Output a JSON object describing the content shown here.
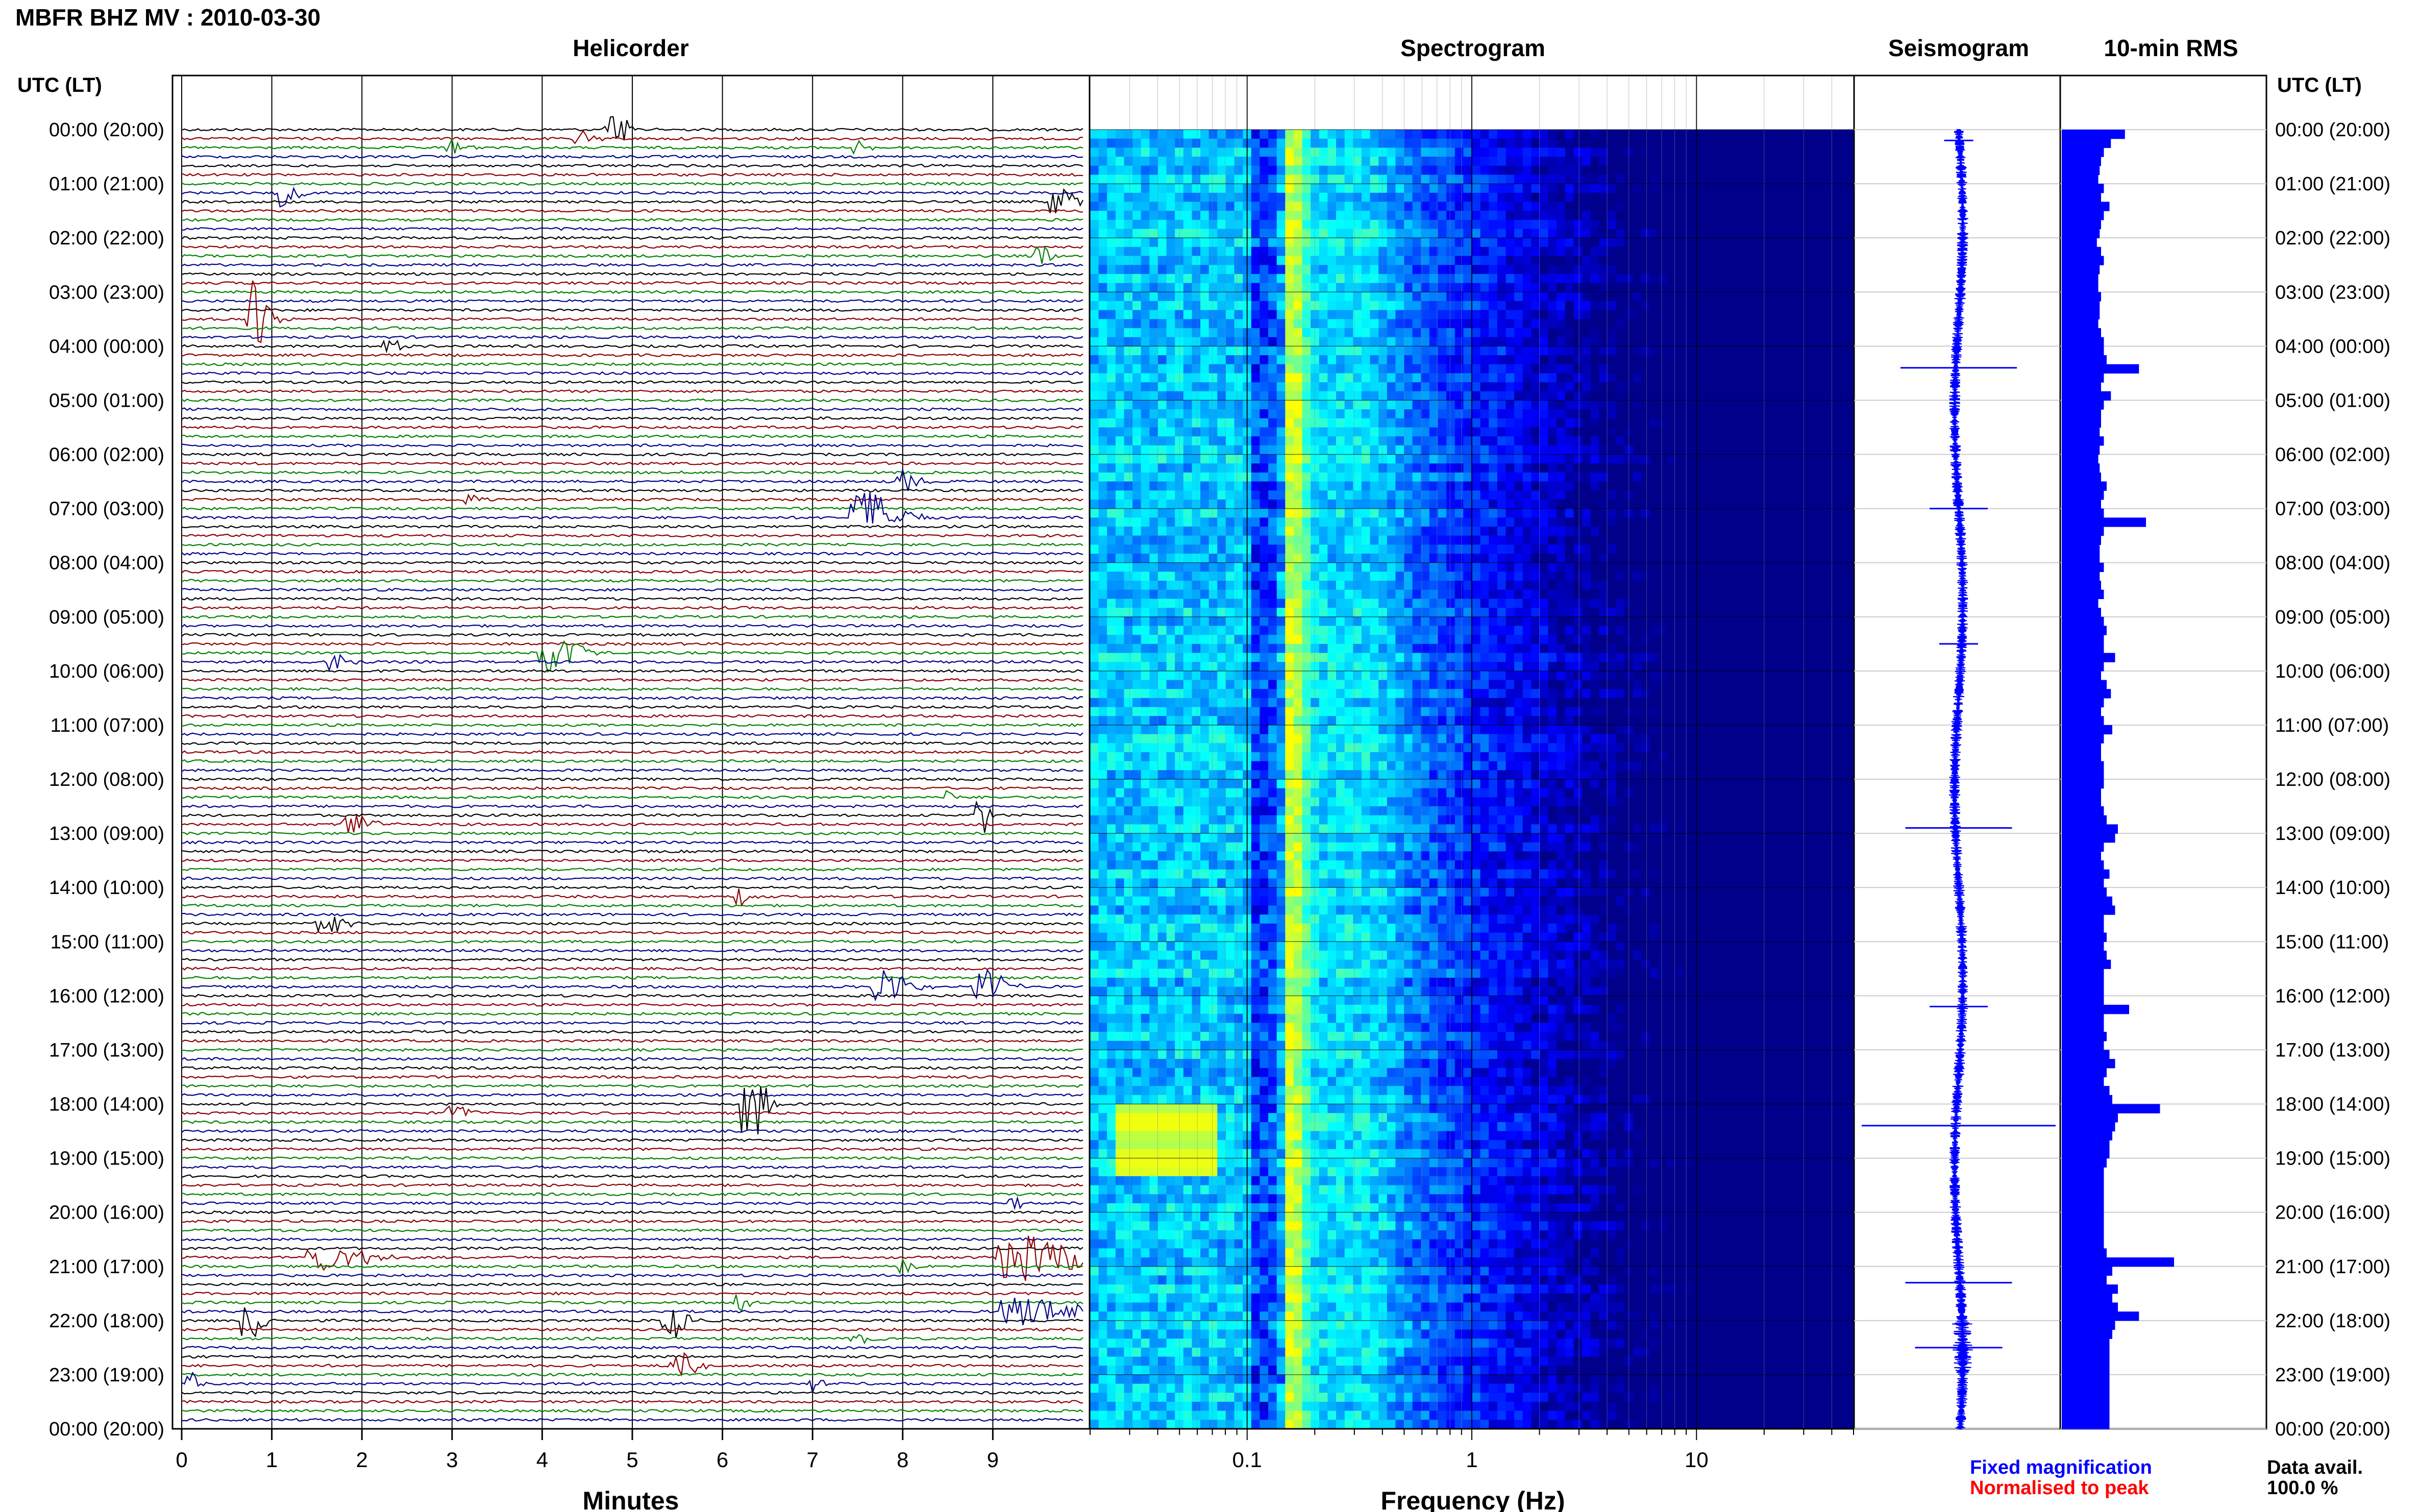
{
  "header": {
    "title": "MBFR BHZ MV : 2010-03-30"
  },
  "panels": {
    "helicorder": "Helicorder",
    "spectrogram": "Spectrogram",
    "seismogram": "Seismogram",
    "rms": "10-min RMS"
  },
  "axis_labels": {
    "utc_left": "UTC (LT)",
    "utc_right": "UTC (LT)",
    "minutes": "Minutes",
    "frequency": "Frequency (Hz)"
  },
  "time_labels": [
    "00:00 (20:00)",
    "01:00 (21:00)",
    "02:00 (22:00)",
    "03:00 (23:00)",
    "04:00 (00:00)",
    "05:00 (01:00)",
    "06:00 (02:00)",
    "07:00 (03:00)",
    "08:00 (04:00)",
    "09:00 (05:00)",
    "10:00 (06:00)",
    "11:00 (07:00)",
    "12:00 (08:00)",
    "13:00 (09:00)",
    "14:00 (10:00)",
    "15:00 (11:00)",
    "16:00 (12:00)",
    "17:00 (13:00)",
    "18:00 (14:00)",
    "19:00 (15:00)",
    "20:00 (16:00)",
    "21:00 (17:00)",
    "22:00 (18:00)",
    "23:00 (19:00)",
    "00:00 (20:00)"
  ],
  "minute_ticks": [
    "0",
    "1",
    "2",
    "3",
    "4",
    "5",
    "6",
    "7",
    "8",
    "9"
  ],
  "freq_ticks": [
    "0.1",
    "1",
    "10"
  ],
  "legend": {
    "fixed": "Fixed magnification",
    "normalised": "Normalised to peak",
    "fixed_color": "#0000ff",
    "normalised_color": "#ff0000"
  },
  "data_avail": {
    "label": "Data avail.",
    "value": "100.0 %"
  },
  "colors": {
    "trace": [
      "#000000",
      "#8b0000",
      "#008000",
      "#00008b"
    ],
    "rms_bar": "#0000ff",
    "seismogram": "#0000ff"
  },
  "chart_data": [
    {
      "type": "line",
      "panel": "Helicorder",
      "xlabel": "Minutes",
      "xlim": [
        0,
        10
      ],
      "rows_per_hour": 6,
      "rows": 144,
      "events": [
        {
          "row": 0,
          "minute": 4.8,
          "amp": 0.35,
          "width": 0.35,
          "color": "#000000"
        },
        {
          "row": 1,
          "minute": 4.4,
          "amp": 0.2,
          "width": 0.3,
          "color": "#8b0000"
        },
        {
          "row": 2,
          "minute": 3.0,
          "amp": 0.18,
          "width": 0.3,
          "color": "#008000"
        },
        {
          "row": 2,
          "minute": 7.5,
          "amp": 0.18,
          "width": 0.2,
          "color": "#008000"
        },
        {
          "row": 7,
          "minute": 1.1,
          "amp": 0.3,
          "width": 0.3,
          "color": "#000000"
        },
        {
          "row": 8,
          "minute": 9.7,
          "amp": 0.35,
          "width": 0.3,
          "color": "#8b0000"
        },
        {
          "row": 14,
          "minute": 9.5,
          "amp": 0.3,
          "width": 0.25,
          "color": "#008000"
        },
        {
          "row": 21,
          "minute": 0.8,
          "amp": 0.9,
          "width": 0.3,
          "color": "#00008b"
        },
        {
          "row": 24,
          "minute": 2.3,
          "amp": 0.2,
          "width": 0.2,
          "color": "#8b0000"
        },
        {
          "row": 39,
          "minute": 8.0,
          "amp": 0.25,
          "width": 0.3,
          "color": "#8b0000"
        },
        {
          "row": 41,
          "minute": 3.2,
          "amp": 0.15,
          "width": 0.2,
          "color": "#008000"
        },
        {
          "row": 43,
          "minute": 7.6,
          "amp": 0.6,
          "width": 0.6,
          "color": "#8b0000"
        },
        {
          "row": 58,
          "minute": 4.1,
          "amp": 0.45,
          "width": 0.5,
          "color": "#8b0000"
        },
        {
          "row": 59,
          "minute": 1.7,
          "amp": 0.25,
          "width": 0.3,
          "color": "#00008b"
        },
        {
          "row": 74,
          "minute": 8.5,
          "amp": 0.2,
          "width": 0.1,
          "color": "#000000"
        },
        {
          "row": 76,
          "minute": 8.85,
          "amp": 0.6,
          "width": 0.15,
          "color": "#000000"
        },
        {
          "row": 77,
          "minute": 1.9,
          "amp": 0.25,
          "width": 0.4,
          "color": "#8b0000"
        },
        {
          "row": 85,
          "minute": 6.2,
          "amp": 0.18,
          "width": 0.2,
          "color": "#000000"
        },
        {
          "row": 88,
          "minute": 1.6,
          "amp": 0.2,
          "width": 0.4,
          "color": "#008000"
        },
        {
          "row": 95,
          "minute": 7.8,
          "amp": 0.4,
          "width": 0.5,
          "color": "#00008b"
        },
        {
          "row": 95,
          "minute": 8.9,
          "amp": 0.4,
          "width": 0.4,
          "color": "#00008b"
        },
        {
          "row": 108,
          "minute": 6.3,
          "amp": 0.8,
          "width": 0.3,
          "color": "#00008b"
        },
        {
          "row": 109,
          "minute": 3.0,
          "amp": 0.2,
          "width": 0.3,
          "color": "#008000"
        },
        {
          "row": 119,
          "minute": 9.2,
          "amp": 0.2,
          "width": 0.2,
          "color": "#008000"
        },
        {
          "row": 125,
          "minute": 9.35,
          "amp": 0.5,
          "width": 1.1,
          "color": "#008000"
        },
        {
          "row": 125,
          "minute": 1.6,
          "amp": 0.3,
          "width": 0.8,
          "color": "#008000"
        },
        {
          "row": 126,
          "minute": 8.0,
          "amp": 0.18,
          "width": 0.2,
          "color": "#000000"
        },
        {
          "row": 130,
          "minute": 6.2,
          "amp": 0.2,
          "width": 0.3,
          "color": "#000000"
        },
        {
          "row": 131,
          "minute": 9.35,
          "amp": 0.35,
          "width": 0.9,
          "color": "#00008b"
        },
        {
          "row": 132,
          "minute": 0.75,
          "amp": 0.45,
          "width": 0.3,
          "color": "#008000"
        },
        {
          "row": 132,
          "minute": 5.4,
          "amp": 0.45,
          "width": 0.3,
          "color": "#008000"
        },
        {
          "row": 134,
          "minute": 7.5,
          "amp": 0.2,
          "width": 0.3,
          "color": "#8b0000"
        },
        {
          "row": 137,
          "minute": 5.5,
          "amp": 0.3,
          "width": 0.4,
          "color": "#000000"
        },
        {
          "row": 139,
          "minute": 0.1,
          "amp": 0.3,
          "width": 0.2,
          "color": "#00008b"
        },
        {
          "row": 139,
          "minute": 7.0,
          "amp": 0.2,
          "width": 0.2,
          "color": "#00008b"
        }
      ]
    },
    {
      "type": "heatmap",
      "panel": "Spectrogram",
      "xlabel": "Frequency (Hz)",
      "xscale": "log",
      "xlim": [
        0.02,
        50
      ],
      "colormap": [
        "#00008b",
        "#0000ff",
        "#0080ff",
        "#00ffff",
        "#80ff80",
        "#ffff00"
      ],
      "ridge_hz": 0.16,
      "secondary_peak_hz": 0.35
    },
    {
      "type": "line",
      "panel": "Seismogram",
      "spikes": [
        {
          "hour": 0.2,
          "amp": 0.15
        },
        {
          "hour": 4.4,
          "amp": 0.6
        },
        {
          "hour": 7.0,
          "amp": 0.3
        },
        {
          "hour": 9.5,
          "amp": 0.2
        },
        {
          "hour": 12.9,
          "amp": 0.55
        },
        {
          "hour": 16.2,
          "amp": 0.3
        },
        {
          "hour": 18.4,
          "amp": 1.0
        },
        {
          "hour": 21.3,
          "amp": 0.55
        },
        {
          "hour": 22.5,
          "amp": 0.45
        }
      ]
    },
    {
      "type": "bar",
      "panel": "10-min RMS",
      "xlim": [
        0,
        1
      ],
      "orientation": "horizontal",
      "values": [
        0.45,
        0.35,
        0.3,
        0.28,
        0.27,
        0.26,
        0.3,
        0.28,
        0.34,
        0.3,
        0.28,
        0.27,
        0.25,
        0.28,
        0.3,
        0.27,
        0.26,
        0.26,
        0.28,
        0.27,
        0.27,
        0.26,
        0.28,
        0.3,
        0.3,
        0.32,
        0.55,
        0.3,
        0.28,
        0.35,
        0.3,
        0.28,
        0.28,
        0.27,
        0.3,
        0.27,
        0.26,
        0.27,
        0.28,
        0.32,
        0.3,
        0.28,
        0.3,
        0.6,
        0.3,
        0.28,
        0.27,
        0.27,
        0.3,
        0.27,
        0.28,
        0.3,
        0.26,
        0.28,
        0.3,
        0.32,
        0.3,
        0.3,
        0.38,
        0.3,
        0.28,
        0.32,
        0.35,
        0.3,
        0.28,
        0.3,
        0.36,
        0.3,
        0.28,
        0.28,
        0.3,
        0.3,
        0.3,
        0.28,
        0.28,
        0.3,
        0.32,
        0.4,
        0.38,
        0.3,
        0.28,
        0.3,
        0.34,
        0.3,
        0.32,
        0.36,
        0.38,
        0.3,
        0.3,
        0.32,
        0.3,
        0.32,
        0.35,
        0.3,
        0.3,
        0.3,
        0.3,
        0.48,
        0.3,
        0.3,
        0.32,
        0.3,
        0.34,
        0.38,
        0.32,
        0.3,
        0.34,
        0.36,
        0.7,
        0.4,
        0.38,
        0.36,
        0.34,
        0.34,
        0.32,
        0.3,
        0.3,
        0.3,
        0.3,
        0.3,
        0.3,
        0.3,
        0.3,
        0.3,
        0.32,
        0.8,
        0.36,
        0.32,
        0.4,
        0.36,
        0.4,
        0.55,
        0.38,
        0.36,
        0.34,
        0.34,
        0.34,
        0.34,
        0.34,
        0.34,
        0.34,
        0.34,
        0.34,
        0.34
      ]
    }
  ]
}
